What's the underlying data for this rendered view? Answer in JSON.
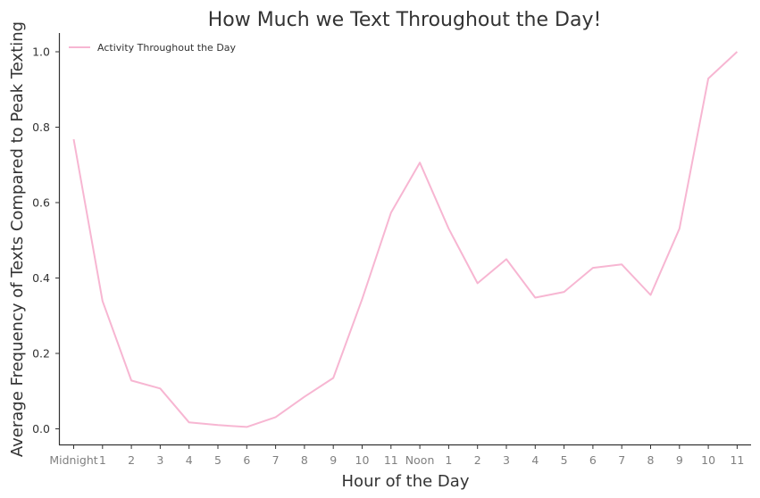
{
  "chart_data": {
    "type": "line",
    "title": "How Much we Text Throughout the Day!",
    "xlabel": "Hour of the Day",
    "ylabel": "Average Frequency of Texts Compared to Peak Texting",
    "categories": [
      "Midnight",
      "1",
      "2",
      "3",
      "4",
      "5",
      "6",
      "7",
      "8",
      "9",
      "10",
      "11",
      "Noon",
      "1",
      "2",
      "3",
      "4",
      "5",
      "6",
      "7",
      "8",
      "9",
      "10",
      "11"
    ],
    "series": [
      {
        "name": "Activity Throughout the Day",
        "color": "#f7b6d2",
        "values": [
          0.768,
          0.339,
          0.128,
          0.107,
          0.017,
          0.01,
          0.005,
          0.031,
          0.085,
          0.135,
          0.344,
          0.573,
          0.706,
          0.531,
          0.386,
          0.45,
          0.348,
          0.363,
          0.427,
          0.436,
          0.355,
          0.531,
          0.929,
          1.0
        ]
      }
    ],
    "yticks": [
      "0.0",
      "0.2",
      "0.4",
      "0.6",
      "0.8",
      "1.0"
    ],
    "ylim": [
      -0.04,
      1.05
    ],
    "grid": false,
    "legend_position": "upper left"
  }
}
